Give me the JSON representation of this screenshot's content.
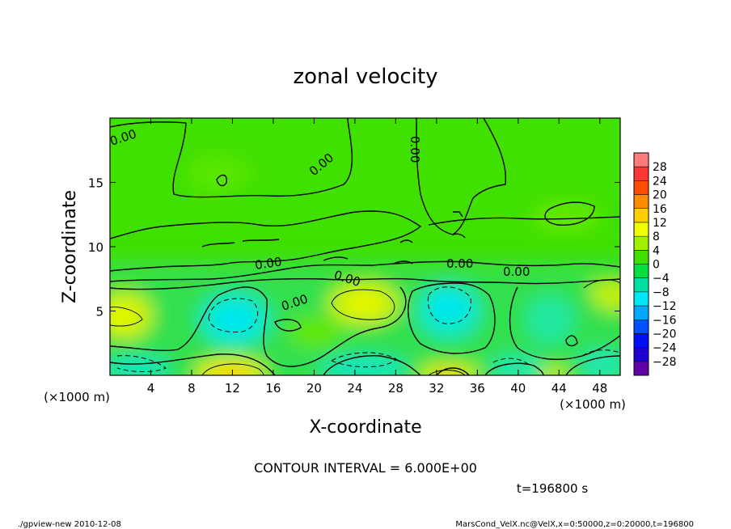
{
  "chart_data": {
    "type": "heatmap",
    "title": "zonal velocity",
    "xlabel": "X-coordinate",
    "ylabel": "Z-coordinate",
    "x_unit_label": "(×1000 m)",
    "y_unit_label": "(×1000 m)",
    "xlim": [
      0,
      50
    ],
    "ylim": [
      0,
      20
    ],
    "x_ticks": [
      4,
      8,
      12,
      16,
      20,
      24,
      28,
      32,
      36,
      40,
      44,
      48
    ],
    "y_ticks": [
      5,
      10,
      15
    ],
    "grid": false,
    "colorbar": {
      "labels": [
        "28",
        "24",
        "20",
        "16",
        "12",
        "8",
        "4",
        "0",
        "−4",
        "−8",
        "−12",
        "−16",
        "−20",
        "−24",
        "−28"
      ],
      "colors": [
        "#ff7c7c",
        "#ff3636",
        "#ff4c00",
        "#ff8c00",
        "#ffd000",
        "#f0ff00",
        "#a0f000",
        "#40e000",
        "#00e040",
        "#00e0a0",
        "#00e8f8",
        "#00a8ff",
        "#0050ff",
        "#0010f0",
        "#2000d0",
        "#6000a8"
      ]
    },
    "contour_labels": [
      "0.00",
      "0.00",
      "0.00",
      "0.00",
      "0.00",
      "0.00",
      "0.00",
      "0.00"
    ],
    "contour_interval_text": "CONTOUR INTERVAL = 6.000E+00",
    "time_text": "t=196800 s"
  },
  "footer": {
    "left": "./gpview-new  2010-12-08",
    "right": "MarsCond_VelX.nc@VelX,x=0:50000,z=0:20000,t=196800"
  }
}
